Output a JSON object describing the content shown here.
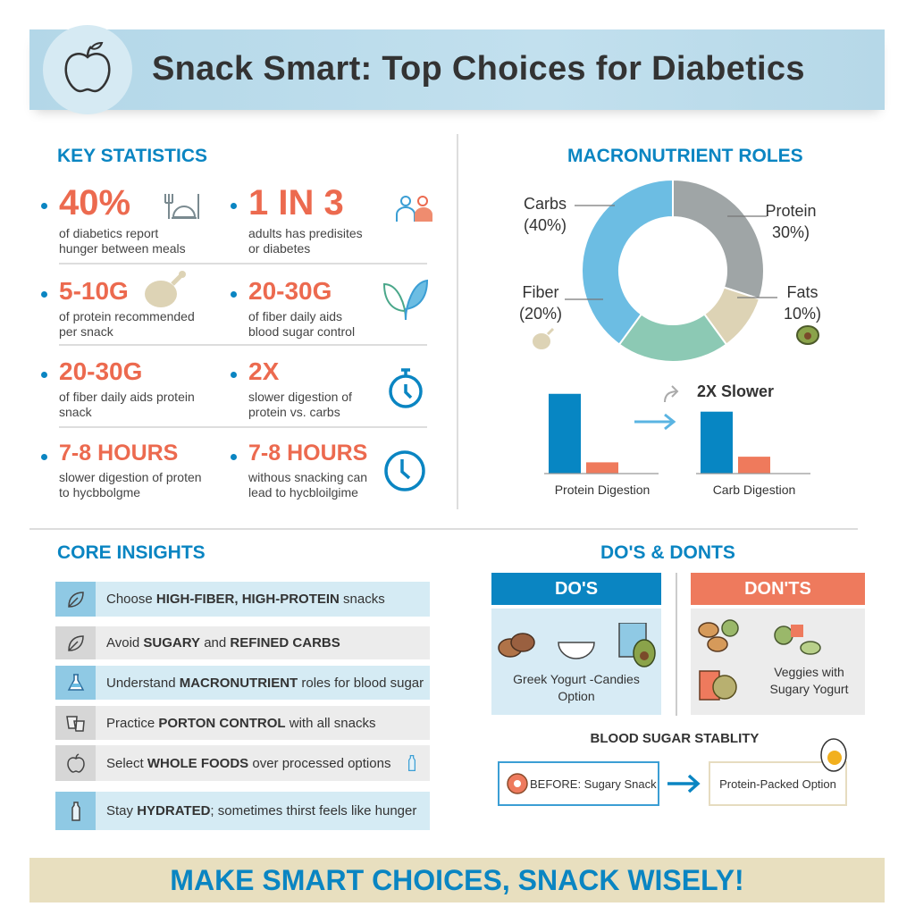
{
  "header": {
    "title": "Snack Smart: Top Choices for Diabetics",
    "icon": "apple-icon"
  },
  "key_stats": {
    "title": "KEY STATISTICS",
    "items": [
      {
        "value": "40%",
        "desc1": "of diabetics report",
        "desc2": "hunger between meals",
        "icon": "plate-cutlery-icon"
      },
      {
        "value": "1 IN 3",
        "desc1": "adults has predisites",
        "desc2": "or diabetes",
        "icon": "people-icon"
      },
      {
        "value": "5-10G",
        "desc1": "of protein recommended",
        "desc2": "per snack",
        "icon": "chicken-leg-icon"
      },
      {
        "value": "20-30G",
        "desc1": "of fiber daily aids",
        "desc2": "blood sugar control",
        "icon": "leaves-icon"
      },
      {
        "value": "20-30G",
        "desc1": "of fiber daily aids protein",
        "desc2": "snack",
        "icon": ""
      },
      {
        "value": "2X",
        "desc1": "slower digestion of",
        "desc2": "protein vs. carbs",
        "icon": "stopwatch-icon"
      },
      {
        "value": "7-8 HOURS",
        "desc1": "slower digestion of proten",
        "desc2": "to hycbbolgme",
        "icon": ""
      },
      {
        "value": "7-8 HOURS",
        "desc1": "withous snacking can",
        "desc2": "lead to hycbloilgime",
        "icon": "clock-icon"
      }
    ]
  },
  "macro": {
    "title": "MACRONUTRIENT ROLES"
  },
  "chart_data": [
    {
      "type": "pie",
      "style": "donut",
      "slices": [
        {
          "label": "Carbs",
          "display": "(40%)",
          "value": 40,
          "color": "#6cbde3"
        },
        {
          "label": "Fiber",
          "display": "(20%)",
          "value": 20,
          "color": "#8cc9b4"
        },
        {
          "label": "Fats",
          "display": "10%)",
          "value": 10,
          "color": "#ddd3b5"
        },
        {
          "label": "Protein",
          "display": "30%)",
          "value": 30,
          "color": "#9fa5a6"
        }
      ],
      "extra_slice_color": "#4a4a4a"
    },
    {
      "type": "bar",
      "annotation": "2X Slower",
      "groups": [
        {
          "label": "Protein Digestion",
          "values": [
            85,
            12
          ]
        },
        {
          "label": "Carb Digestion",
          "values": [
            66,
            18
          ]
        }
      ],
      "colors": [
        "#0786c3",
        "#ef7a5c"
      ]
    }
  ],
  "insights": {
    "title": "CORE INSIGHTS",
    "items": [
      {
        "pre": "Choose ",
        "bold": "HIGH-FIBER, HIGH-PROTEIN",
        "post": " snacks",
        "icon": "leaf-icon",
        "style": "blue"
      },
      {
        "pre": "Avoid ",
        "bold": "SUGARY",
        "mid": " and ",
        "bold2": "REFINED CARBS",
        "post": "",
        "icon": "leaf-icon",
        "style": "gray"
      },
      {
        "pre": "Understand ",
        "bold": "MACRONUTRIENT",
        "post": " roles for blood sugar",
        "icon": "flask-icon",
        "style": "blue"
      },
      {
        "pre": "Practice ",
        "bold": "PORTON CONTROL",
        "post": " with all snacks",
        "icon": "measuring-cups-icon",
        "style": "gray"
      },
      {
        "pre": "Select ",
        "bold": "WHOLE FOODS",
        "post": " over processed options",
        "icon": "apple-icon",
        "style": "gray"
      },
      {
        "pre": "Stay ",
        "bold": "HYDRATED",
        "post": "; sometimes thirst feels like hunger",
        "icon": "water-bottle-icon",
        "style": "blue"
      }
    ]
  },
  "dos": {
    "title": "DO'S & DONTS",
    "do_label": "DO'S",
    "dont_label": "DON'TS",
    "do_text1": "Greek Yogurt -Candies",
    "do_text2": "Option",
    "dont_text1": "Veggies with",
    "dont_text2": "Sugary Yogurt"
  },
  "stability": {
    "title": "BLOOD SUGAR STABLITY",
    "before": "BEFORE: Sugary Snack",
    "after": "Protein-Packed Option"
  },
  "footer": {
    "text": "MAKE SMART CHOICES, SNACK WISELY!"
  },
  "colors": {
    "accent": "#0a85c2",
    "highlight": "#ec6a4f",
    "header_bg": "#b5d8e8",
    "footer_bg": "#e8dfbf"
  }
}
